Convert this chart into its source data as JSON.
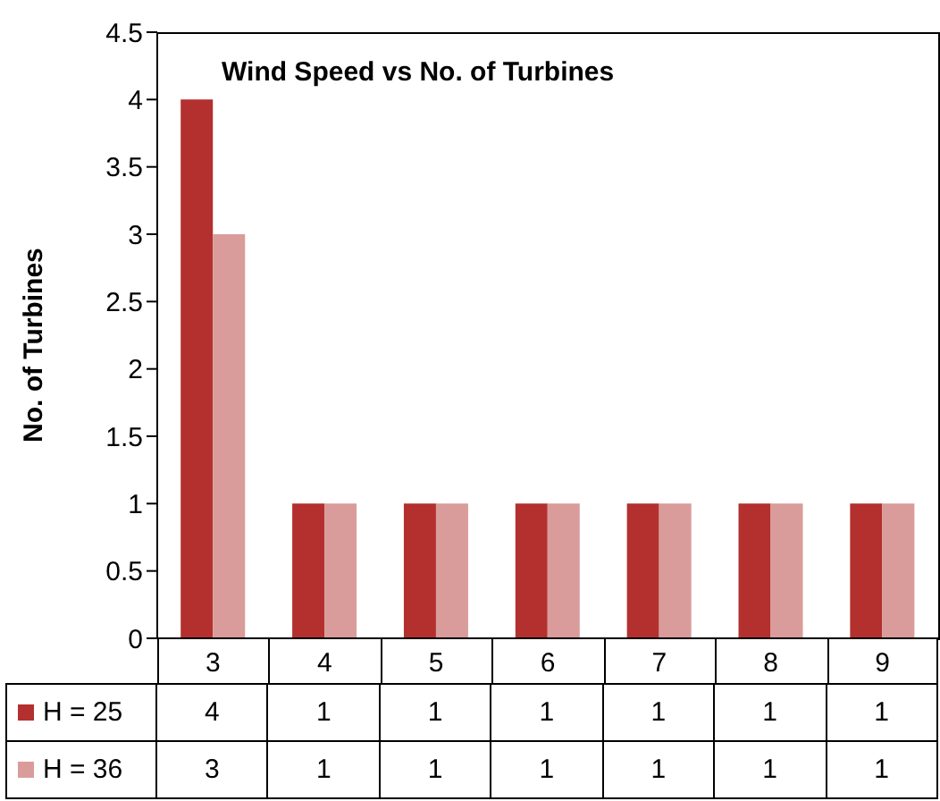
{
  "chart_data": {
    "type": "bar",
    "title": "Wind Speed vs No. of Turbines",
    "ylabel": "No. of Turbines",
    "categories": [
      "3",
      "4",
      "5",
      "6",
      "7",
      "8",
      "9"
    ],
    "series": [
      {
        "name": "H = 25",
        "color": "#b3302e",
        "values": [
          4,
          1,
          1,
          1,
          1,
          1,
          1
        ]
      },
      {
        "name": "H = 36",
        "color": "#d99c9a",
        "values": [
          3,
          1,
          1,
          1,
          1,
          1,
          1
        ]
      }
    ],
    "ylim": [
      0,
      4.5
    ],
    "yticks": [
      0,
      0.5,
      1,
      1.5,
      2,
      2.5,
      3,
      3.5,
      4,
      4.5
    ],
    "legend": "bottom",
    "data_labels": true
  }
}
